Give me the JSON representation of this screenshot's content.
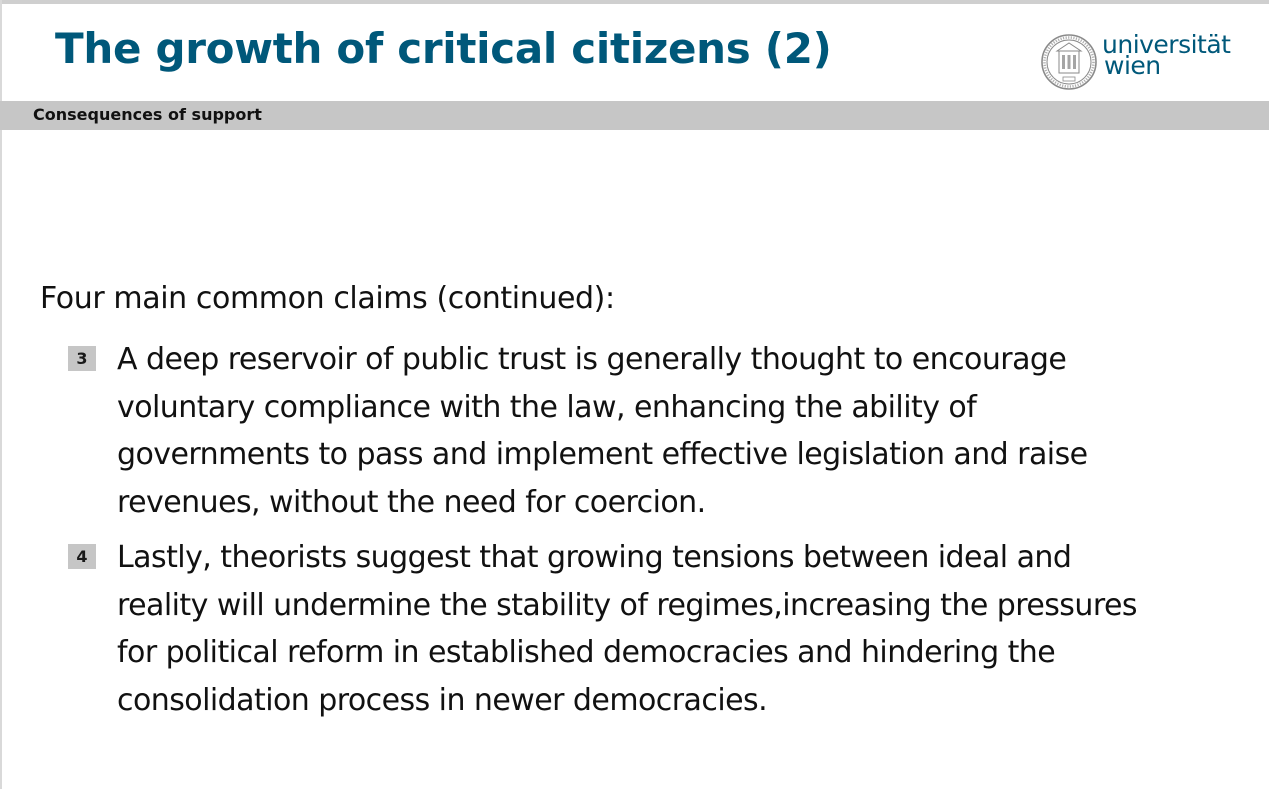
{
  "slide": {
    "title": "The growth of critical citizens (2)",
    "subtitle": "Consequences of support"
  },
  "logo": {
    "line1": "universität",
    "line2": "wien",
    "color": "#00587a"
  },
  "content": {
    "intro": "Four main common claims (continued):",
    "claims": [
      {
        "number": "3",
        "lines": [
          "A deep reservoir of public trust is generally thought to encourage",
          "voluntary compliance with the law, enhancing the ability of",
          "governments to pass and implement effective legislation and raise",
          "revenues, without the need for coercion."
        ]
      },
      {
        "number": "4",
        "lines": [
          "Lastly, theorists suggest that growing tensions between ideal and",
          "reality will undermine the stability of regimes,increasing the pressures",
          "for political reform in established democracies and hindering the",
          "consolidation process in newer democracies."
        ]
      }
    ]
  },
  "colors": {
    "title": "#00587a",
    "bar": "#c6c6c6",
    "text": "#111111"
  }
}
